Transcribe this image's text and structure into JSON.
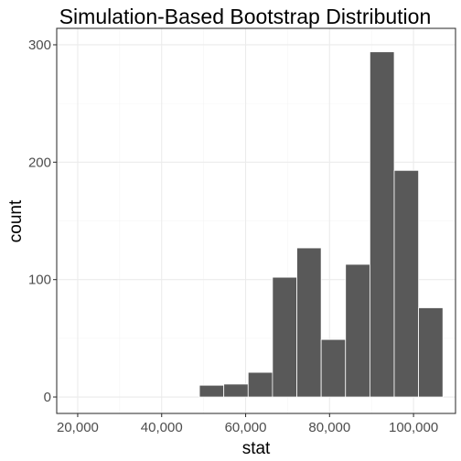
{
  "chart_data": {
    "type": "bar",
    "title": "Simulation-Based Bootstrap Distribution",
    "xlabel": "stat",
    "ylabel": "count",
    "xlim": [
      15000,
      110000
    ],
    "ylim": [
      -14,
      314
    ],
    "x_ticks": [
      20000,
      40000,
      60000,
      80000,
      100000
    ],
    "x_tick_labels": [
      "20,000",
      "40,000",
      "60,000",
      "80,000",
      "100,000"
    ],
    "y_ticks": [
      0,
      100,
      200,
      300
    ],
    "y_tick_labels": [
      "0",
      "100",
      "200",
      "300"
    ],
    "grid": true,
    "legend": "none",
    "bar_color": "#595959",
    "bins": [
      {
        "x_start": 49000,
        "x_end": 54800,
        "count": 10
      },
      {
        "x_start": 54800,
        "x_end": 60600,
        "count": 11
      },
      {
        "x_start": 60600,
        "x_end": 66400,
        "count": 21
      },
      {
        "x_start": 66400,
        "x_end": 72200,
        "count": 102
      },
      {
        "x_start": 72200,
        "x_end": 78000,
        "count": 127
      },
      {
        "x_start": 78000,
        "x_end": 83800,
        "count": 49
      },
      {
        "x_start": 83800,
        "x_end": 89600,
        "count": 113
      },
      {
        "x_start": 89600,
        "x_end": 95400,
        "count": 294
      },
      {
        "x_start": 95400,
        "x_end": 101200,
        "count": 193
      },
      {
        "x_start": 101200,
        "x_end": 107000,
        "count": 76
      }
    ]
  }
}
